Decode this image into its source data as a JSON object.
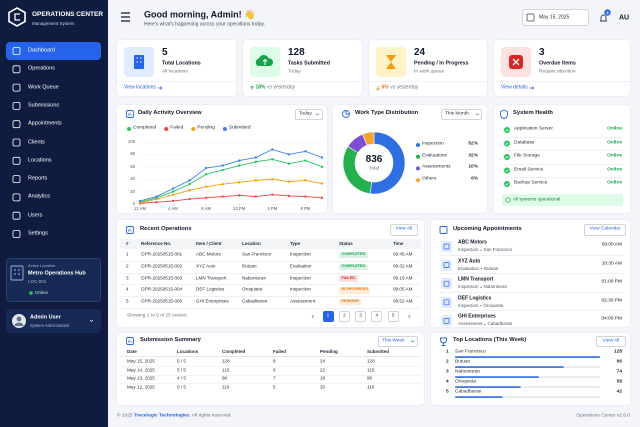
{
  "sidebar": {
    "brand": "OPERATIONS CENTER",
    "tagline": "Management System",
    "nav": [
      "Dashboard",
      "Operations",
      "Work Queue",
      "Submissions",
      "Appointments",
      "Clients",
      "Locations",
      "Reports",
      "Analytics",
      "Users",
      "Settings"
    ],
    "location": {
      "heading": "Active Location",
      "name": "Metro Operations Hub",
      "code": "LOC-001",
      "status": "Online"
    },
    "user": {
      "name": "Admin User",
      "role": "System Administrator"
    }
  },
  "header": {
    "greeting": "Good morning, Admin! 👋",
    "subtitle": "Here's what's happening across your operations today.",
    "date": "May 15, 2025",
    "notifications": "8",
    "initials": "AU"
  },
  "stats": [
    {
      "value": "5",
      "label": "Total Locations",
      "sub": "All locations",
      "link": "View locations"
    },
    {
      "value": "128",
      "label": "Tasks Submitted",
      "sub": "Today",
      "change": "18%",
      "note": "vs yesterday"
    },
    {
      "value": "24",
      "label": "Pending / In Progress",
      "sub": "In work queue",
      "change": "6%",
      "note": "vs yesterday"
    },
    {
      "value": "3",
      "label": "Overdue Items",
      "sub": "Require attention",
      "link": "View details"
    }
  ],
  "chart_data": [
    {
      "type": "line",
      "title": "Daily Activity Overview",
      "period": "Today",
      "x": [
        0,
        2,
        4,
        6,
        8,
        10,
        12,
        14,
        16,
        18,
        20,
        22
      ],
      "xlim": [
        0,
        22
      ],
      "xticks": [
        {
          "value": 0,
          "label": "12 AM"
        },
        {
          "value": 4,
          "label": "4 AM"
        },
        {
          "value": 8,
          "label": "8 AM"
        },
        {
          "value": 12,
          "label": "12 PM"
        },
        {
          "value": 16,
          "label": "4 PM"
        },
        {
          "value": 20,
          "label": "8 PM"
        }
      ],
      "ylim": [
        0,
        100
      ],
      "yticks": [
        0,
        20,
        40,
        60,
        80,
        100
      ],
      "grid": true,
      "series": [
        {
          "name": "Completed",
          "color": "#22c55e",
          "values": [
            3,
            10,
            20,
            32,
            48,
            55,
            62,
            68,
            72,
            65,
            70,
            60
          ]
        },
        {
          "name": "Failed",
          "color": "#ef4444",
          "values": [
            1,
            3,
            5,
            8,
            10,
            12,
            14,
            12,
            15,
            13,
            12,
            10
          ]
        },
        {
          "name": "Pending",
          "color": "#f59e0b",
          "values": [
            2,
            8,
            15,
            22,
            28,
            32,
            35,
            38,
            40,
            36,
            38,
            33
          ]
        },
        {
          "name": "Submitted",
          "color": "#3b82f6",
          "values": [
            5,
            12,
            25,
            38,
            58,
            62,
            70,
            75,
            88,
            80,
            85,
            75
          ]
        }
      ]
    },
    {
      "type": "pie",
      "title": "Work Type Distribution",
      "period": "This Month",
      "total": "836",
      "total_label": "Total",
      "categories": [
        "Inspection",
        "Evaluations",
        "Assessments",
        "Others"
      ],
      "values": [
        52,
        32,
        10,
        6
      ],
      "value_labels": [
        "52%",
        "32%",
        "10%",
        "6%"
      ],
      "colors": [
        "#2f6fe4",
        "#22b14c",
        "#7b4fd9",
        "#f5a623"
      ]
    }
  ],
  "system_health": {
    "title": "System Health",
    "services": [
      {
        "name": "Application Server",
        "status": "Online"
      },
      {
        "name": "Database",
        "status": "Online"
      },
      {
        "name": "File Storage",
        "status": "Online"
      },
      {
        "name": "Email Service",
        "status": "Online"
      },
      {
        "name": "Backup Service",
        "status": "Online"
      }
    ],
    "summary": "All systems operational"
  },
  "recent_operations": {
    "title": "Recent Operations",
    "action": "View All",
    "columns": [
      "#",
      "Reference No.",
      "Item / Client",
      "Location",
      "Type",
      "Status",
      "Time"
    ],
    "rows": [
      [
        "1",
        "OPR-20250515-001",
        "ABC Motors",
        "San Francisco",
        "Inspection",
        "COMPLETED",
        "09:45 AM"
      ],
      [
        "2",
        "OPR-20250515-002",
        "XYZ Auto",
        "Butuan",
        "Evaluation",
        "COMPLETED",
        "09:32 AM"
      ],
      [
        "3",
        "OPR-20250515-003",
        "LMN Transport",
        "Nabunturan",
        "Inspection",
        "FAILED",
        "09:18 AM"
      ],
      [
        "4",
        "OPR-20250515-004",
        "DEF Logistics",
        "Oroquieta",
        "Inspection",
        "IN PROGRESS",
        "09:05 AM"
      ],
      [
        "5",
        "OPR-20250515-005",
        "GHI Enterprises",
        "Cabadbaran",
        "Assessment",
        "PENDING",
        "08:52 AM"
      ]
    ],
    "status_colors": [
      "#16a34a",
      "#16a34a",
      "#dc2626",
      "#ea7a0c",
      "#d97706"
    ],
    "footer": "Showing 1 to 5 of 25 entries",
    "pages": [
      "1",
      "2",
      "3",
      "4",
      "5"
    ]
  },
  "appointments": {
    "title": "Upcoming Appointments",
    "action": "View Calendar",
    "items": [
      {
        "client": "ABC Motors",
        "type": "Inspection",
        "location": "San Francisco",
        "time": "09:00 AM"
      },
      {
        "client": "XYZ Auto",
        "type": "Evaluation",
        "location": "Butuan",
        "time": "10:30 AM"
      },
      {
        "client": "LMN Transport",
        "type": "Inspection",
        "location": "Nabunturan",
        "time": "01:00 PM"
      },
      {
        "client": "DEF Logistics",
        "type": "Inspection",
        "location": "Oroquieta",
        "time": "02:30 PM"
      },
      {
        "client": "GHI Enterprises",
        "type": "Assessment",
        "location": "Cabadbaran",
        "time": "04:00 PM"
      }
    ]
  },
  "submission_summary": {
    "title": "Submission Summary",
    "period": "This Week",
    "columns": [
      "Date",
      "Locations",
      "Completed",
      "Failed",
      "Pending",
      "Submitted"
    ],
    "rows": [
      [
        "May 15, 2025",
        "5 / 5",
        "128",
        "8",
        "24",
        "128"
      ],
      [
        "May 14, 2025",
        "5 / 5",
        "115",
        "6",
        "22",
        "115"
      ],
      [
        "May 13, 2025",
        "4 / 5",
        "96",
        "7",
        "18",
        "96"
      ],
      [
        "May 12, 2025",
        "5 / 5",
        "110",
        "5",
        "20",
        "110"
      ]
    ]
  },
  "top_locations": {
    "title": "Top Locations (This Week)",
    "action": "View All",
    "items": [
      {
        "rank": "1",
        "name": "San Francisco",
        "value": 128
      },
      {
        "rank": "2",
        "name": "Butuan",
        "value": 96
      },
      {
        "rank": "3",
        "name": "Nabunturan",
        "value": 74
      },
      {
        "rank": "4",
        "name": "Oroquieta",
        "value": 58
      },
      {
        "rank": "5",
        "name": "Cabadbaran",
        "value": 42
      }
    ]
  },
  "footer": {
    "copyright": "© 2025",
    "company": "Trecelogic Technologies",
    "rights": ". All rights reserved.",
    "version": "Operations Center v2.0.0"
  }
}
